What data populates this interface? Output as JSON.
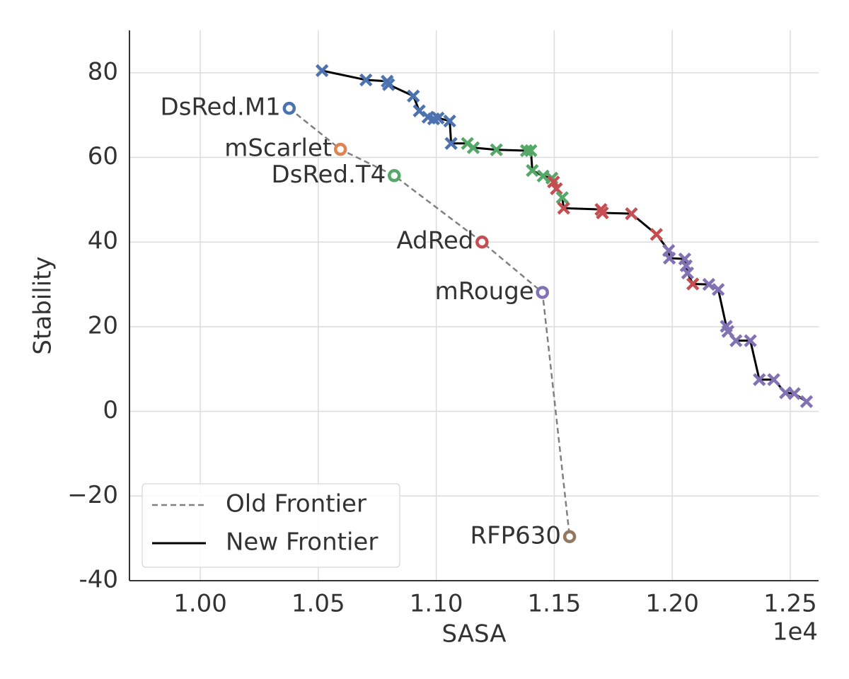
{
  "chart_data": {
    "type": "scatter",
    "xlabel": "SASA",
    "ylabel": "Stability",
    "x_offset_label": "1e4",
    "xlim": [
      9700,
      12620
    ],
    "ylim": [
      -40,
      90
    ],
    "xticks": [
      {
        "value": 10000,
        "label": "1.00"
      },
      {
        "value": 10500,
        "label": "1.05"
      },
      {
        "value": 11000,
        "label": "1.10"
      },
      {
        "value": 11500,
        "label": "1.15"
      },
      {
        "value": 12000,
        "label": "1.20"
      },
      {
        "value": 12500,
        "label": "1.25"
      }
    ],
    "yticks": [
      -40,
      {
        "value": -20,
        "label": "−20"
      },
      0,
      20,
      40,
      60,
      80
    ],
    "grid": true,
    "legend": "lower left",
    "series": [
      {
        "name": "Old Frontier",
        "color": "#808080",
        "line_style": "dashed",
        "marker": "circle",
        "point_labels": [
          "DsRed.M1",
          "mScarlet",
          "DsRed.T4",
          "AdRed",
          "mRouge",
          "RFP630"
        ],
        "marker_colors": [
          "#4c72b0",
          "#dd8452",
          "#55a868",
          "#c44e52",
          "#8172b3",
          "#937860"
        ],
        "x": [
          10377,
          10594,
          10822,
          11194,
          11450,
          11565
        ],
        "values": [
          71.6,
          61.9,
          55.7,
          40.0,
          28.1,
          -29.6
        ]
      },
      {
        "name": "New Frontier",
        "color": "#000000",
        "line_style": "solid",
        "marker": "cross",
        "marker_colors": [
          "#4c72b0",
          "#4c72b0",
          "#4c72b0",
          "#4c72b0",
          "#4c72b0",
          "#4c72b0",
          "#4c72b0",
          "#4c72b0",
          "#4c72b0",
          "#4c72b0",
          "#4c72b0",
          "#55a868",
          "#55a868",
          "#55a868",
          "#55a868",
          "#55a868",
          "#55a868",
          "#55a868",
          "#55a868",
          "#c44e52",
          "#c44e52",
          "#55a868",
          "#c44e52",
          "#c44e52",
          "#c44e52",
          "#c44e52",
          "#c44e52",
          "#8172b3",
          "#8172b3",
          "#8172b3",
          "#8172b3",
          "#8172b3",
          "#c44e52",
          "#8172b3",
          "#8172b3",
          "#8172b3",
          "#8172b3",
          "#8172b3",
          "#8172b3",
          "#8172b3",
          "#8172b3",
          "#8172b3",
          "#8172b3",
          "#8172b3"
        ],
        "x": [
          10516,
          10702,
          10792,
          10798,
          10903,
          10928,
          10965,
          10989,
          11008,
          11057,
          11063,
          11132,
          11157,
          11255,
          11382,
          11401,
          11407,
          11453,
          11490,
          11497,
          11509,
          11534,
          11540,
          11698,
          11704,
          11827,
          11933,
          11985,
          11988,
          12053,
          12059,
          12065,
          12087,
          12155,
          12195,
          12229,
          12236,
          12270,
          12331,
          12369,
          12430,
          12480,
          12517,
          12569
        ],
        "values": [
          80.5,
          78.3,
          78.0,
          77.2,
          74.5,
          71.0,
          69.5,
          69.1,
          69.3,
          68.6,
          63.3,
          63.3,
          62.3,
          61.8,
          61.6,
          61.6,
          56.9,
          55.6,
          55.1,
          54.2,
          52.6,
          50.5,
          48.0,
          47.7,
          46.9,
          46.7,
          41.8,
          38.0,
          36.2,
          36.0,
          34.4,
          32.7,
          30.1,
          30.0,
          28.8,
          20.1,
          18.9,
          16.7,
          16.7,
          7.5,
          7.5,
          4.4,
          4.2,
          2.3
        ]
      }
    ]
  }
}
